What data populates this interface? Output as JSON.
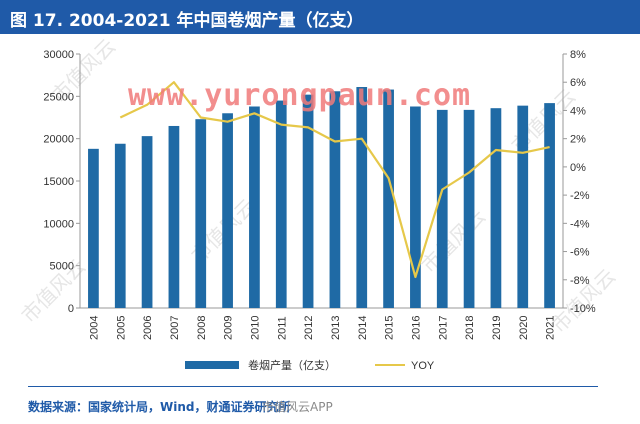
{
  "header": {
    "title": "图 17. 2004-2021 年中国卷烟产量（亿支）"
  },
  "footer": {
    "source": "数据来源：国家统计局，Wind，财通证券研究所"
  },
  "watermarks": {
    "url": "www.yurongpaun.com",
    "weibo": "市值风云APP",
    "faint": "市值风云"
  },
  "colors": {
    "title_bg": "#1f5aa8",
    "bar": "#1f6aa5",
    "line": "#e6c84a",
    "axis": "#999999",
    "text": "#333333"
  },
  "chart_data": {
    "type": "bar",
    "categories": [
      "2004",
      "2005",
      "2006",
      "2007",
      "2008",
      "2009",
      "2010",
      "2011",
      "2012",
      "2013",
      "2014",
      "2015",
      "2016",
      "2017",
      "2018",
      "2019",
      "2020",
      "2021"
    ],
    "series": [
      {
        "name": "卷烟产量（亿支）",
        "type": "bar",
        "axis": "left",
        "values": [
          18800,
          19400,
          20300,
          21500,
          22300,
          23000,
          23800,
          24500,
          25200,
          25600,
          26100,
          25800,
          23800,
          23400,
          23400,
          23600,
          23900,
          24200
        ]
      },
      {
        "name": "YOY",
        "type": "line",
        "axis": "right",
        "values": [
          null,
          3.5,
          4.4,
          6.0,
          3.5,
          3.2,
          3.8,
          3.0,
          2.8,
          1.8,
          2.0,
          -0.8,
          -7.8,
          -1.6,
          -0.4,
          1.2,
          1.0,
          1.4
        ]
      }
    ],
    "y_left": {
      "min": 0,
      "max": 30000,
      "ticks": [
        "0",
        "5000",
        "10000",
        "15000",
        "20000",
        "25000",
        "30000"
      ],
      "tick_values": [
        0,
        5000,
        10000,
        15000,
        20000,
        25000,
        30000
      ]
    },
    "y_right": {
      "min": -10,
      "max": 8,
      "ticks": [
        "-10%",
        "-8%",
        "-6%",
        "-4%",
        "-2%",
        "0%",
        "2%",
        "4%",
        "6%",
        "8%"
      ],
      "tick_values": [
        -10,
        -8,
        -6,
        -4,
        -2,
        0,
        2,
        4,
        6,
        8
      ]
    },
    "legend": {
      "position": "bottom",
      "items": [
        "卷烟产量（亿支）",
        "YOY"
      ]
    },
    "grid": false
  }
}
